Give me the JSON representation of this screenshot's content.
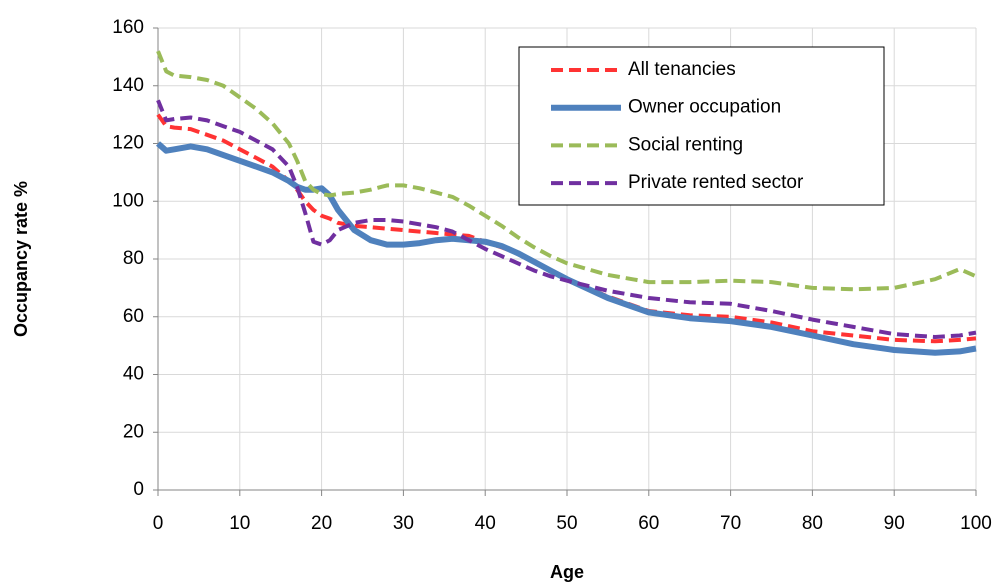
{
  "chart_data": {
    "type": "line",
    "x_label": "Age",
    "y_label": "Occupancy rate %",
    "x": [
      0,
      1,
      2,
      4,
      6,
      8,
      10,
      12,
      14,
      16,
      17,
      18,
      19,
      20,
      21,
      22,
      24,
      26,
      28,
      30,
      32,
      34,
      36,
      38,
      40,
      42,
      44,
      46,
      48,
      50,
      55,
      60,
      65,
      70,
      75,
      80,
      85,
      90,
      95,
      98,
      100
    ],
    "series": [
      {
        "name": "All tenancies",
        "color": "#ff3333",
        "line_style": "dashed",
        "line_width": 4,
        "values": [
          130,
          126,
          125.5,
          125,
          123,
          121,
          118,
          115,
          112,
          107,
          104,
          100,
          97,
          95,
          94,
          92.5,
          91.5,
          91,
          90.5,
          90,
          89.5,
          89,
          88.5,
          88,
          86,
          84,
          82,
          79,
          76,
          73,
          67,
          62,
          60.5,
          60,
          58,
          55,
          53.5,
          52,
          51.5,
          52,
          52.5
        ]
      },
      {
        "name": "Owner occupation",
        "color": "#4f81bd",
        "line_style": "solid",
        "line_width": 6,
        "values": [
          120,
          117.5,
          118,
          119,
          118,
          116,
          114,
          112,
          110,
          107,
          105,
          104,
          104,
          104.5,
          102,
          97,
          90,
          86.5,
          85,
          85,
          85.5,
          86.5,
          87,
          86.5,
          86,
          84.5,
          82,
          79,
          76,
          73,
          66.5,
          61.5,
          59.5,
          58.5,
          56.5,
          53.5,
          50.5,
          48.5,
          47.5,
          48,
          49
        ]
      },
      {
        "name": "Social renting",
        "color": "#9bbb59",
        "line_style": "dashed",
        "line_width": 4,
        "values": [
          152,
          145,
          143.5,
          143,
          142,
          140,
          136,
          132,
          127,
          120,
          114,
          107,
          104,
          102.5,
          102,
          102.5,
          103,
          104,
          105.5,
          105.5,
          104.5,
          103,
          101.5,
          98.5,
          95,
          91.5,
          87.5,
          84,
          81,
          78.5,
          74.5,
          72,
          72,
          72.5,
          72,
          70,
          69.5,
          70,
          73,
          76.5,
          74
        ]
      },
      {
        "name": "Private rented sector",
        "color": "#7030a0",
        "line_style": "dashed",
        "line_width": 4,
        "values": [
          135,
          128,
          128.5,
          129,
          128,
          126,
          124,
          121,
          118,
          112,
          105,
          96,
          86,
          85,
          86.5,
          90,
          92.5,
          93.5,
          93.5,
          93,
          92,
          91,
          89.5,
          86.5,
          83.5,
          81,
          78.5,
          76,
          74,
          72.5,
          69,
          66.5,
          65,
          64.5,
          62,
          59,
          56.5,
          54,
          53,
          53.5,
          54.5
        ]
      }
    ],
    "xlim": [
      0,
      100
    ],
    "xticks": [
      0,
      10,
      20,
      30,
      40,
      50,
      60,
      70,
      80,
      90,
      100
    ],
    "ylim": [
      0,
      160
    ],
    "yticks": [
      0,
      20,
      40,
      60,
      80,
      100,
      120,
      140,
      160
    ],
    "grid": true,
    "legend": "upper right"
  }
}
